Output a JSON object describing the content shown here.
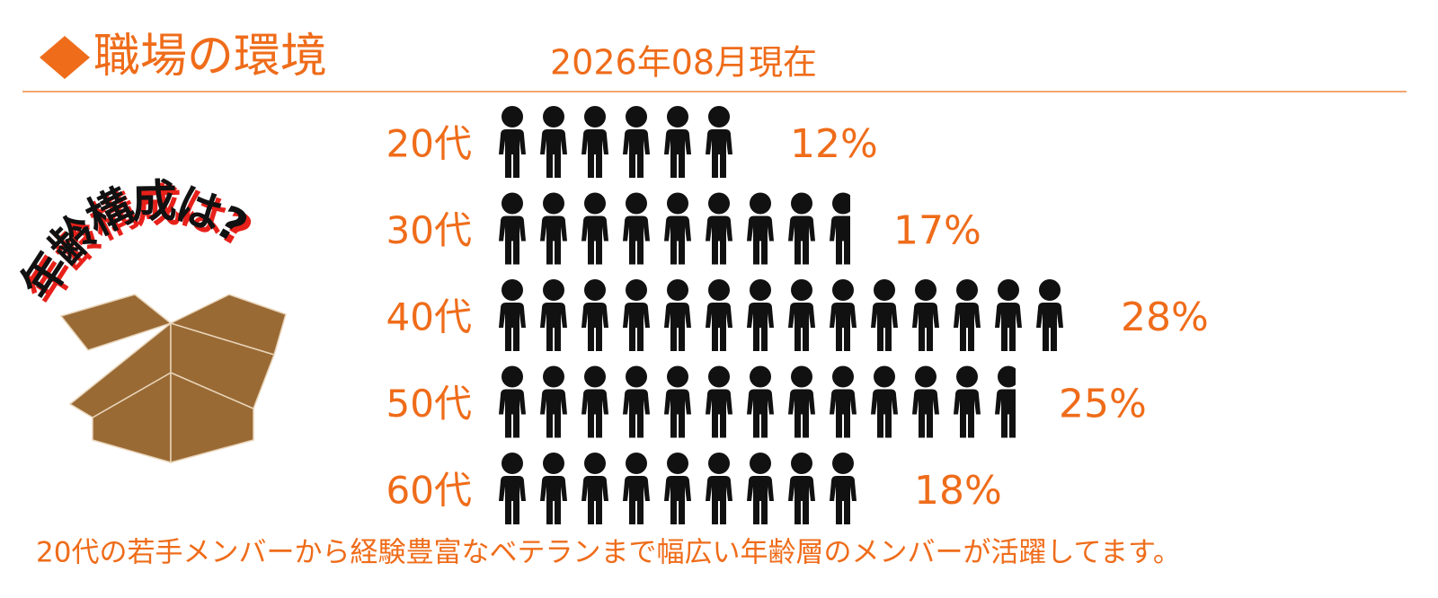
{
  "chart_data": {
    "type": "pictogram",
    "title": "職場の環境",
    "subtitle": "2026年08月現在",
    "annotation": "年齢構成は?",
    "footnote": "20代の若手メンバーから経験豊富なベテランまで幅広い年齢層のメンバーが活躍してます。",
    "categories": [
      "20代",
      "30代",
      "40代",
      "50代",
      "60代"
    ],
    "values": [
      12,
      17,
      28,
      25,
      18
    ],
    "value_labels": [
      "12%",
      "17%",
      "28%",
      "25%",
      "18%"
    ],
    "color": "#111111",
    "label_color": "#ef6c1a"
  }
}
